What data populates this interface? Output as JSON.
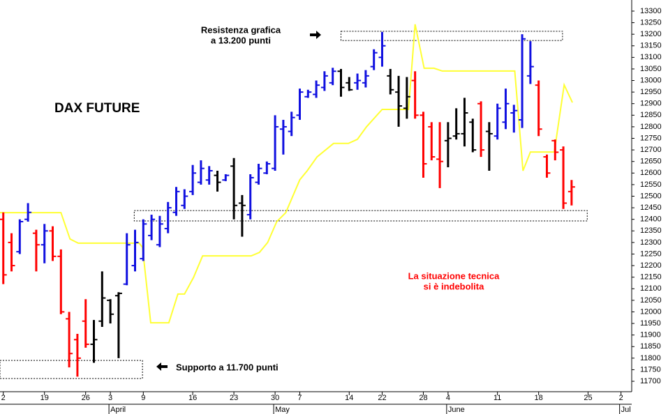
{
  "chart_data": {
    "type": "ohlc",
    "title": "DAX FUTURE",
    "xlim": [
      -0.4,
      76.3
    ],
    "ylim": [
      11655,
      13348
    ],
    "xticks": [
      {
        "value": 0,
        "label": "2"
      },
      {
        "value": 5,
        "label": "19"
      },
      {
        "value": 10,
        "label": "26"
      },
      {
        "value": 13,
        "label": "3"
      },
      {
        "value": 17,
        "label": "9"
      },
      {
        "value": 23,
        "label": "16"
      },
      {
        "value": 28,
        "label": "23"
      },
      {
        "value": 33,
        "label": "30"
      },
      {
        "value": 36,
        "label": "7"
      },
      {
        "value": 42,
        "label": "14"
      },
      {
        "value": 46,
        "label": "22"
      },
      {
        "value": 51,
        "label": "28"
      },
      {
        "value": 54,
        "label": "4"
      },
      {
        "value": 60,
        "label": "11"
      },
      {
        "value": 65,
        "label": "18"
      },
      {
        "value": 71,
        "label": "25"
      },
      {
        "value": 75,
        "label": "2"
      }
    ],
    "month_labels": [
      {
        "value": 13,
        "label": "April"
      },
      {
        "value": 33,
        "label": "May"
      },
      {
        "value": 54,
        "label": "June"
      },
      {
        "value": 75,
        "label": "Jul"
      }
    ],
    "yticks": [
      11700,
      11750,
      11800,
      11850,
      11900,
      11950,
      12000,
      12050,
      12100,
      12150,
      12200,
      12250,
      12300,
      12350,
      12400,
      12450,
      12500,
      12550,
      12600,
      12650,
      12700,
      12750,
      12800,
      12850,
      12900,
      12950,
      13000,
      13050,
      13100,
      13150,
      13200,
      13250,
      13300
    ],
    "ohlc": {
      "x": [
        0,
        1,
        2,
        3,
        4,
        5,
        6,
        7,
        8,
        9,
        10,
        11,
        12,
        13,
        14,
        15,
        16,
        17,
        18,
        19,
        20,
        21,
        22,
        23,
        24,
        25,
        26,
        27,
        28,
        29,
        30,
        31,
        32,
        33,
        34,
        35,
        36,
        37,
        38,
        39,
        40,
        41,
        42,
        43,
        44,
        45,
        46,
        47,
        48,
        49,
        50,
        51,
        52,
        53,
        54,
        55,
        56,
        57,
        58,
        59,
        60,
        61,
        62,
        63,
        64,
        65,
        66,
        67,
        68,
        69
      ],
      "high": [
        12430,
        12340,
        12400,
        12470,
        12355,
        12380,
        12370,
        12270,
        12000,
        11905,
        12055,
        11965,
        12175,
        12055,
        12085,
        12340,
        12355,
        12400,
        12420,
        12415,
        12475,
        12540,
        12530,
        12635,
        12655,
        12630,
        12610,
        12595,
        12665,
        12505,
        12595,
        12640,
        12650,
        12850,
        12830,
        12865,
        12965,
        12960,
        13000,
        13040,
        13055,
        13050,
        13015,
        13030,
        13045,
        13135,
        13210,
        13050,
        13020,
        13015,
        13040,
        12865,
        12820,
        12820,
        12820,
        12880,
        12925,
        12835,
        12910,
        12820,
        12900,
        12965,
        12895,
        13200,
        13170,
        13000,
        12680,
        12745,
        12715,
        12570
      ],
      "low": [
        12120,
        12175,
        12250,
        12390,
        12175,
        12210,
        12220,
        11990,
        11760,
        11720,
        11845,
        11780,
        11935,
        11950,
        11800,
        12115,
        12175,
        12220,
        12310,
        12280,
        12340,
        12415,
        12445,
        12505,
        12550,
        12550,
        12520,
        12565,
        12400,
        12325,
        12400,
        12550,
        12595,
        12610,
        12680,
        12760,
        12830,
        12925,
        12925,
        12955,
        12980,
        12930,
        12955,
        12960,
        12970,
        13045,
        13060,
        12940,
        12800,
        12835,
        12835,
        12580,
        12655,
        12535,
        12625,
        12745,
        12715,
        12690,
        12670,
        12610,
        12745,
        12790,
        12775,
        12795,
        12985,
        12760,
        12580,
        12655,
        12445,
        12460
      ],
      "open": [
        12400,
        12300,
        12260,
        12400,
        12340,
        12290,
        12350,
        12240,
        11970,
        11880,
        11960,
        11860,
        11960,
        12050,
        12070,
        12120,
        12200,
        12230,
        12330,
        12290,
        12360,
        12430,
        12460,
        12520,
        12560,
        12570,
        12590,
        12570,
        12630,
        12470,
        12420,
        12560,
        12600,
        12620,
        12790,
        12780,
        12850,
        12930,
        12940,
        12970,
        12990,
        13040,
        12990,
        12990,
        12990,
        13060,
        13100,
        13020,
        12950,
        12880,
        13000,
        12850,
        12800,
        12660,
        12740,
        12760,
        12770,
        12820,
        12900,
        12780,
        12760,
        12820,
        12860,
        12830,
        13020,
        12980,
        12670,
        12740,
        12700,
        12520
      ],
      "close": [
        12160,
        12200,
        12390,
        12430,
        12290,
        12350,
        12240,
        12000,
        11820,
        11800,
        11860,
        11880,
        12060,
        11990,
        12080,
        12290,
        12300,
        12380,
        12400,
        12380,
        12450,
        12520,
        12500,
        12600,
        12620,
        12610,
        12560,
        12590,
        12460,
        12460,
        12580,
        12620,
        12640,
        12800,
        12800,
        12840,
        12950,
        12950,
        12980,
        13020,
        13040,
        12970,
        12960,
        13000,
        13020,
        13120,
        13150,
        12960,
        12890,
        12930,
        12850,
        12640,
        12670,
        12650,
        12750,
        12770,
        12860,
        12700,
        12700,
        12770,
        12880,
        12900,
        12870,
        13180,
        13060,
        12790,
        12600,
        12690,
        12470,
        12540
      ],
      "colors": [
        "#ff0000",
        "#ff0000",
        "#1010e0",
        "#1010e0",
        "#ff0000",
        "#1010e0",
        "#ff0000",
        "#ff0000",
        "#ff0000",
        "#ff0000",
        "#ff0000",
        "#000000",
        "#000000",
        "#000000",
        "#000000",
        "#1010e0",
        "#1010e0",
        "#1010e0",
        "#1010e0",
        "#1010e0",
        "#1010e0",
        "#1010e0",
        "#1010e0",
        "#1010e0",
        "#1010e0",
        "#1010e0",
        "#000000",
        "#1010e0",
        "#000000",
        "#000000",
        "#1010e0",
        "#1010e0",
        "#1010e0",
        "#1010e0",
        "#1010e0",
        "#1010e0",
        "#1010e0",
        "#1010e0",
        "#1010e0",
        "#1010e0",
        "#1010e0",
        "#000000",
        "#000000",
        "#1010e0",
        "#1010e0",
        "#1010e0",
        "#1010e0",
        "#000000",
        "#000000",
        "#000000",
        "#ff0000",
        "#ff0000",
        "#ff0000",
        "#ff0000",
        "#000000",
        "#000000",
        "#000000",
        "#000000",
        "#ff0000",
        "#000000",
        "#1010e0",
        "#1010e0",
        "#1010e0",
        "#1010e0",
        "#1010e0",
        "#ff0000",
        "#ff0000",
        "#ff0000",
        "#ff0000",
        "#ff0000"
      ]
    },
    "series": [
      {
        "color": "#ffff33",
        "x": [
          -0.4,
          7.0,
          8.1,
          9.1,
          16.5,
          16.9,
          17.9,
          20.1,
          21.2,
          22.0,
          23.1,
          24.2,
          30.1,
          31.1,
          32.1,
          33.2,
          34.3,
          36.0,
          36.9,
          38.1,
          40.1,
          41.9,
          43.0,
          44.1,
          46.0,
          49.2,
          50.0,
          51.1,
          52.3,
          53.3,
          62.1,
          63.1,
          64.0,
          66.9,
          68.1,
          69.1
        ],
        "values": [
          12429,
          12429,
          12315,
          12297,
          12297,
          12279,
          11953,
          11953,
          12077,
          12077,
          12149,
          12242,
          12242,
          12257,
          12300,
          12390,
          12429,
          12571,
          12610,
          12670,
          12728,
          12728,
          12746,
          12800,
          12875,
          12875,
          13243,
          13053,
          13053,
          13041,
          13041,
          12610,
          12691,
          12691,
          12981,
          12905
        ]
      }
    ],
    "zones": [
      {
        "x": [
          41.0,
          67.9
        ],
        "y": [
          13173,
          13213
        ]
      },
      {
        "x": [
          15.9,
          70.9
        ],
        "y": [
          12393,
          12438
        ]
      },
      {
        "x": [
          -0.4,
          16.9
        ],
        "y": [
          11712,
          11790
        ]
      }
    ],
    "annotations": {
      "resistance": [
        "Resistenza grafica",
        "a 13.200 punti"
      ],
      "support": "Supporto a 11.700 punti",
      "technical": [
        "La situazione tecnica",
        "si è indebolita"
      ]
    }
  }
}
